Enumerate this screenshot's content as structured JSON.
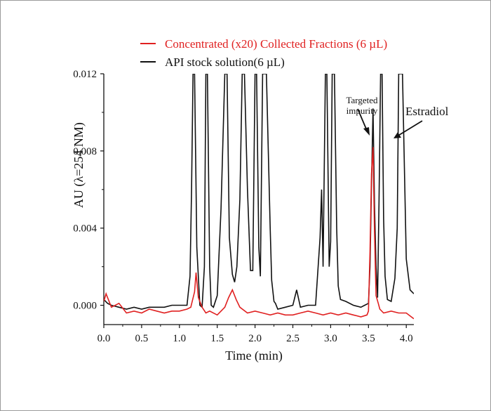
{
  "chart_data": {
    "type": "line",
    "title": "",
    "xlabel": "Time (min)",
    "ylabel": "AU (λ=254 NM)",
    "xlim": [
      0,
      4.1
    ],
    "ylim": [
      -0.001,
      0.012
    ],
    "xticks": [
      0.0,
      0.5,
      1.0,
      1.5,
      2.0,
      2.5,
      3.0,
      3.5,
      4.0
    ],
    "xtick_labels": [
      "0.0",
      "0.5",
      "1.0",
      "1.5",
      "2.0",
      "2.5",
      "3.0",
      "3.5",
      "4.0"
    ],
    "yticks": [
      0.0,
      0.004,
      0.008,
      0.012
    ],
    "ytick_labels": [
      "0.000",
      "0.004",
      "0.008",
      "0.012"
    ],
    "grid": false,
    "legend_position": "top",
    "series": [
      {
        "name": "Concentrated (x20) Collected Fractions (6 µL)",
        "color": "#e02020",
        "x": [
          0.0,
          0.03,
          0.1,
          0.2,
          0.3,
          0.4,
          0.5,
          0.6,
          0.7,
          0.8,
          0.9,
          1.0,
          1.1,
          1.15,
          1.2,
          1.22,
          1.25,
          1.3,
          1.35,
          1.4,
          1.5,
          1.55,
          1.6,
          1.65,
          1.7,
          1.75,
          1.8,
          1.9,
          2.0,
          2.1,
          2.2,
          2.3,
          2.4,
          2.5,
          2.6,
          2.7,
          2.8,
          2.9,
          3.0,
          3.1,
          3.2,
          3.3,
          3.4,
          3.48,
          3.5,
          3.52,
          3.54,
          3.56,
          3.58,
          3.6,
          3.63,
          3.65,
          3.7,
          3.8,
          3.9,
          4.0,
          4.1
        ],
        "y": [
          0.0002,
          0.0006,
          -0.0001,
          0.0001,
          -0.0004,
          -0.0003,
          -0.0004,
          -0.0002,
          -0.0003,
          -0.0004,
          -0.0003,
          -0.0003,
          -0.0002,
          -0.0001,
          0.0007,
          0.0017,
          0.0004,
          -0.0001,
          -0.0004,
          -0.0003,
          -0.0005,
          -0.0003,
          -0.0001,
          0.0004,
          0.0008,
          0.0003,
          -0.0001,
          -0.0004,
          -0.0003,
          -0.0004,
          -0.0005,
          -0.0004,
          -0.0005,
          -0.0005,
          -0.0004,
          -0.0003,
          -0.0004,
          -0.0005,
          -0.0004,
          -0.0005,
          -0.0004,
          -0.0005,
          -0.0006,
          -0.0005,
          -0.0003,
          0.0028,
          0.0068,
          0.0082,
          0.0038,
          0.0005,
          0.0001,
          -0.0002,
          -0.0004,
          -0.0003,
          -0.0004,
          -0.0004,
          -0.0007
        ]
      },
      {
        "name": "API stock solution(6 µL)",
        "color": "#111111",
        "x": [
          0.0,
          0.05,
          0.1,
          0.2,
          0.3,
          0.4,
          0.5,
          0.6,
          0.7,
          0.8,
          0.9,
          1.0,
          1.1,
          1.14,
          1.16,
          1.18,
          1.2,
          1.23,
          1.27,
          1.3,
          1.33,
          1.35,
          1.37,
          1.4,
          1.42,
          1.45,
          1.5,
          1.55,
          1.6,
          1.63,
          1.66,
          1.7,
          1.73,
          1.76,
          1.8,
          1.83,
          1.86,
          1.9,
          1.94,
          1.97,
          2.0,
          2.02,
          2.05,
          2.07,
          2.1,
          2.15,
          2.2,
          2.22,
          2.25,
          2.27,
          2.3,
          2.4,
          2.5,
          2.55,
          2.6,
          2.7,
          2.8,
          2.86,
          2.88,
          2.9,
          2.93,
          2.95,
          2.98,
          3.0,
          3.02,
          3.05,
          3.08,
          3.1,
          3.13,
          3.2,
          3.3,
          3.4,
          3.45,
          3.5,
          3.52,
          3.54,
          3.56,
          3.58,
          3.6,
          3.62,
          3.64,
          3.66,
          3.68,
          3.7,
          3.72,
          3.75,
          3.8,
          3.85,
          3.88,
          3.9,
          3.95,
          4.0,
          4.05,
          4.1
        ],
        "y": [
          0.0003,
          0.0001,
          0.0,
          -0.0001,
          -0.0002,
          -0.0001,
          -0.0002,
          -0.0001,
          -0.0001,
          -0.0001,
          0.0,
          0.0,
          0.0,
          0.0015,
          0.006,
          0.012,
          0.012,
          0.003,
          0.0,
          -0.0001,
          0.002,
          0.012,
          0.012,
          0.002,
          0.0,
          -0.0001,
          0.0005,
          0.005,
          0.012,
          0.012,
          0.0035,
          0.0016,
          0.0012,
          0.002,
          0.0055,
          0.012,
          0.012,
          0.006,
          0.0018,
          0.0018,
          0.012,
          0.012,
          0.003,
          0.0015,
          0.012,
          0.012,
          0.004,
          0.0013,
          0.0002,
          0.0001,
          -0.0002,
          -0.0001,
          0.0,
          0.0008,
          -0.0001,
          0.0,
          0.0,
          0.0035,
          0.006,
          0.002,
          0.012,
          0.012,
          0.002,
          0.0033,
          0.012,
          0.012,
          0.004,
          0.001,
          0.0003,
          0.0002,
          0.0,
          -0.0001,
          0.0,
          0.0001,
          0.002,
          0.0062,
          0.0102,
          0.0052,
          0.002,
          0.0004,
          0.0055,
          0.012,
          0.012,
          0.0045,
          0.0015,
          0.0003,
          0.0002,
          0.0014,
          0.004,
          0.012,
          0.012,
          0.0024,
          0.0008,
          0.0006
        ]
      }
    ],
    "annotations": [
      {
        "text": "Targeted impurity",
        "lines": [
          "Targeted",
          "impurity"
        ]
      },
      {
        "text": "Estradiol"
      }
    ]
  }
}
